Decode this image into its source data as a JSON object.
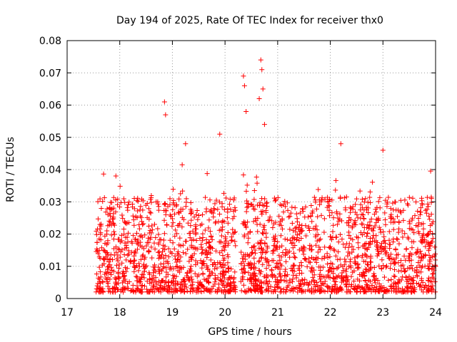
{
  "chart_data": {
    "type": "scatter",
    "title": "Day 194 of 2025, Rate Of TEC Index for receiver thx0",
    "xlabel": "GPS time / hours",
    "ylabel": "ROTI / TECUs",
    "xlim": [
      17,
      24
    ],
    "ylim": [
      0,
      0.08
    ],
    "xticks": [
      17,
      18,
      19,
      20,
      21,
      22,
      23,
      24
    ],
    "yticks": [
      0,
      0.01,
      0.02,
      0.03,
      0.04,
      0.05,
      0.06,
      0.07,
      0.08
    ],
    "ytick_labels": [
      "0",
      "0.01",
      "0.02",
      "0.03",
      "0.04",
      "0.05",
      "0.06",
      "0.07",
      "0.08"
    ],
    "grid": true,
    "marker": "+",
    "color": "#ff0000",
    "gap": [
      20.2,
      20.3
    ],
    "series": [
      {
        "name": "thx0 ROTI",
        "x_start": 17.55,
        "x_end": 24.0,
        "typical_range": [
          0.002,
          0.03
        ],
        "bulk_median": 0.012,
        "peaks": [
          {
            "x": 18.85,
            "y": 0.061
          },
          {
            "x": 18.87,
            "y": 0.057
          },
          {
            "x": 19.25,
            "y": 0.048
          },
          {
            "x": 19.9,
            "y": 0.051
          },
          {
            "x": 20.35,
            "y": 0.069
          },
          {
            "x": 20.37,
            "y": 0.066
          },
          {
            "x": 20.4,
            "y": 0.058
          },
          {
            "x": 20.65,
            "y": 0.062
          },
          {
            "x": 20.68,
            "y": 0.074
          },
          {
            "x": 20.7,
            "y": 0.071
          },
          {
            "x": 20.72,
            "y": 0.065
          },
          {
            "x": 20.75,
            "y": 0.054
          },
          {
            "x": 22.2,
            "y": 0.048
          },
          {
            "x": 23.0,
            "y": 0.046
          }
        ]
      }
    ]
  }
}
